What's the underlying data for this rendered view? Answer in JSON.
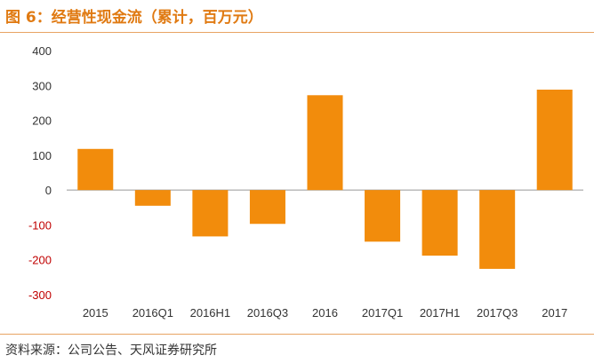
{
  "header": {
    "title": "图 6：经营性现金流（累计，百万元）"
  },
  "footer": {
    "source": "资料来源：公司公告、天风证券研究所"
  },
  "colors": {
    "accent": "#e07a12",
    "bar": "#f28c0c",
    "negative_tick": "#c00000"
  },
  "chart_data": {
    "type": "bar",
    "title": "经营性现金流（累计，百万元）",
    "categories": [
      "2015",
      "2016Q1",
      "2016H1",
      "2016Q3",
      "2016",
      "2017Q1",
      "2017H1",
      "2017Q3",
      "2017"
    ],
    "values": [
      118,
      -45,
      -133,
      -97,
      272,
      -148,
      -188,
      -226,
      288
    ],
    "ylim": [
      -300,
      400
    ],
    "yticks": [
      400,
      300,
      200,
      100,
      0,
      -100,
      -200,
      -300
    ],
    "ytick_labels": [
      "400",
      "300",
      "200",
      "100",
      "0",
      "-100",
      "-200",
      "-300"
    ],
    "xlabel": "",
    "ylabel": "",
    "grid": false,
    "legend": "none"
  }
}
